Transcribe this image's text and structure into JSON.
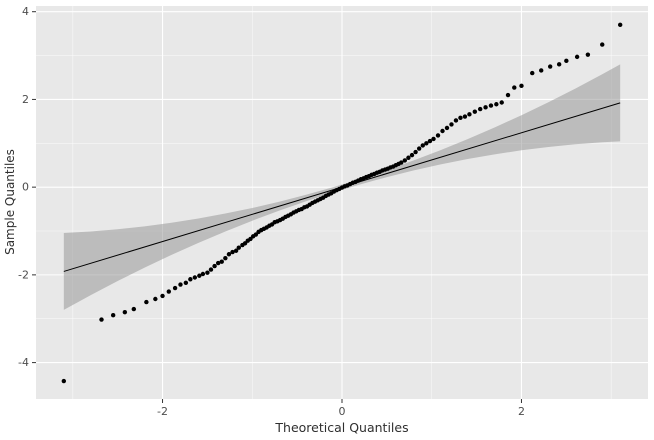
{
  "chart_data": {
    "type": "scatter",
    "title": "",
    "xlabel": "Theoretical Quantiles",
    "ylabel": "Sample Quantiles",
    "xlim": [
      -3.41,
      3.41
    ],
    "ylim": [
      -4.83,
      4.13
    ],
    "x_ticks": [
      -2,
      0,
      2
    ],
    "y_ticks": [
      -4,
      -2,
      0,
      2,
      4
    ],
    "x_minor_ticks": [
      -3,
      -1,
      1,
      3
    ],
    "y_minor_ticks": [
      -3,
      -1,
      1,
      3
    ],
    "grid": true,
    "legend": "none",
    "panel_bg": "#e8e8e8",
    "grid_major_color": "#ffffff",
    "grid_minor_color": "#ffffff",
    "tick_label_color": "#4d4d4d",
    "tick_mark_color": "#333333",
    "point_color": "#000000",
    "point_radius": 2.2,
    "line": {
      "slope": 0.62,
      "intercept": 0,
      "x_start": -3.1,
      "x_end": 3.1,
      "color": "#000000",
      "width": 1
    },
    "band": {
      "color": "#8f8f8f",
      "opacity": 0.5,
      "x": [
        -3.1,
        -2.8,
        -2.5,
        -2.2,
        -1.9,
        -1.6,
        -1.3,
        -1.0,
        -0.7,
        -0.4,
        -0.1,
        0.2,
        0.5,
        0.8,
        1.1,
        1.4,
        1.7,
        2.0,
        2.3,
        2.6,
        2.9,
        3.1
      ],
      "upper": [
        -1.045,
        -1.01,
        -0.959,
        -0.893,
        -0.811,
        -0.714,
        -0.602,
        -0.475,
        -0.332,
        -0.174,
        -0.001,
        0.187,
        0.391,
        0.61,
        0.845,
        1.095,
        1.36,
        1.64,
        1.936,
        2.247,
        2.573,
        2.799
      ],
      "lower": [
        -2.799,
        -2.462,
        -2.141,
        -1.835,
        -1.545,
        -1.27,
        -1.01,
        -0.765,
        -0.536,
        -0.322,
        -0.123,
        0.061,
        0.229,
        0.382,
        0.519,
        0.641,
        0.748,
        0.84,
        0.916,
        0.977,
        1.023,
        1.045
      ]
    },
    "points": [
      [
        -3.1,
        -4.42
      ],
      [
        -2.68,
        -3.02
      ],
      [
        -2.55,
        -2.92
      ],
      [
        -2.42,
        -2.85
      ],
      [
        -2.32,
        -2.78
      ],
      [
        -2.18,
        -2.62
      ],
      [
        -2.08,
        -2.55
      ],
      [
        -2.0,
        -2.48
      ],
      [
        -1.93,
        -2.38
      ],
      [
        -1.86,
        -2.3
      ],
      [
        -1.8,
        -2.22
      ],
      [
        -1.74,
        -2.18
      ],
      [
        -1.69,
        -2.1
      ],
      [
        -1.64,
        -2.06
      ],
      [
        -1.59,
        -2.02
      ],
      [
        -1.55,
        -1.98
      ],
      [
        -1.5,
        -1.95
      ],
      [
        -1.46,
        -1.88
      ],
      [
        -1.42,
        -1.8
      ],
      [
        -1.38,
        -1.73
      ],
      [
        -1.34,
        -1.7
      ],
      [
        -1.3,
        -1.62
      ],
      [
        -1.26,
        -1.53
      ],
      [
        -1.22,
        -1.48
      ],
      [
        -1.18,
        -1.45
      ],
      [
        -1.15,
        -1.38
      ],
      [
        -1.11,
        -1.32
      ],
      [
        -1.08,
        -1.28
      ],
      [
        -1.05,
        -1.22
      ],
      [
        -1.02,
        -1.18
      ],
      [
        -0.99,
        -1.12
      ],
      [
        -0.96,
        -1.08
      ],
      [
        -0.93,
        -1.02
      ],
      [
        -0.9,
        -0.98
      ],
      [
        -0.87,
        -0.95
      ],
      [
        -0.84,
        -0.92
      ],
      [
        -0.81,
        -0.88
      ],
      [
        -0.78,
        -0.85
      ],
      [
        -0.75,
        -0.8
      ],
      [
        -0.72,
        -0.78
      ],
      [
        -0.69,
        -0.75
      ],
      [
        -0.66,
        -0.72
      ],
      [
        -0.63,
        -0.68
      ],
      [
        -0.6,
        -0.65
      ],
      [
        -0.57,
        -0.62
      ],
      [
        -0.54,
        -0.58
      ],
      [
        -0.51,
        -0.55
      ],
      [
        -0.48,
        -0.52
      ],
      [
        -0.45,
        -0.5
      ],
      [
        -0.42,
        -0.46
      ],
      [
        -0.39,
        -0.44
      ],
      [
        -0.36,
        -0.4
      ],
      [
        -0.33,
        -0.36
      ],
      [
        -0.3,
        -0.33
      ],
      [
        -0.27,
        -0.3
      ],
      [
        -0.24,
        -0.27
      ],
      [
        -0.21,
        -0.24
      ],
      [
        -0.18,
        -0.2
      ],
      [
        -0.15,
        -0.17
      ],
      [
        -0.12,
        -0.14
      ],
      [
        -0.09,
        -0.1
      ],
      [
        -0.06,
        -0.07
      ],
      [
        -0.03,
        -0.04
      ],
      [
        0.0,
        -0.01
      ],
      [
        0.03,
        0.02
      ],
      [
        0.06,
        0.04
      ],
      [
        0.09,
        0.07
      ],
      [
        0.12,
        0.1
      ],
      [
        0.15,
        0.12
      ],
      [
        0.18,
        0.15
      ],
      [
        0.21,
        0.18
      ],
      [
        0.24,
        0.2
      ],
      [
        0.27,
        0.23
      ],
      [
        0.3,
        0.25
      ],
      [
        0.33,
        0.28
      ],
      [
        0.36,
        0.3
      ],
      [
        0.39,
        0.33
      ],
      [
        0.42,
        0.35
      ],
      [
        0.45,
        0.38
      ],
      [
        0.48,
        0.4
      ],
      [
        0.51,
        0.42
      ],
      [
        0.54,
        0.45
      ],
      [
        0.57,
        0.47
      ],
      [
        0.6,
        0.5
      ],
      [
        0.63,
        0.53
      ],
      [
        0.66,
        0.56
      ],
      [
        0.7,
        0.61
      ],
      [
        0.74,
        0.67
      ],
      [
        0.78,
        0.73
      ],
      [
        0.82,
        0.8
      ],
      [
        0.86,
        0.88
      ],
      [
        0.9,
        0.95
      ],
      [
        0.94,
        1.0
      ],
      [
        0.98,
        1.05
      ],
      [
        1.02,
        1.1
      ],
      [
        1.07,
        1.18
      ],
      [
        1.12,
        1.28
      ],
      [
        1.17,
        1.35
      ],
      [
        1.22,
        1.43
      ],
      [
        1.27,
        1.52
      ],
      [
        1.32,
        1.58
      ],
      [
        1.37,
        1.61
      ],
      [
        1.42,
        1.66
      ],
      [
        1.48,
        1.72
      ],
      [
        1.54,
        1.78
      ],
      [
        1.6,
        1.82
      ],
      [
        1.66,
        1.86
      ],
      [
        1.72,
        1.89
      ],
      [
        1.78,
        1.93
      ],
      [
        1.85,
        2.1
      ],
      [
        1.92,
        2.27
      ],
      [
        2.0,
        2.31
      ],
      [
        2.12,
        2.6
      ],
      [
        2.22,
        2.66
      ],
      [
        2.32,
        2.75
      ],
      [
        2.42,
        2.8
      ],
      [
        2.5,
        2.88
      ],
      [
        2.62,
        2.97
      ],
      [
        2.74,
        3.02
      ],
      [
        2.9,
        3.25
      ],
      [
        3.1,
        3.7
      ]
    ]
  }
}
